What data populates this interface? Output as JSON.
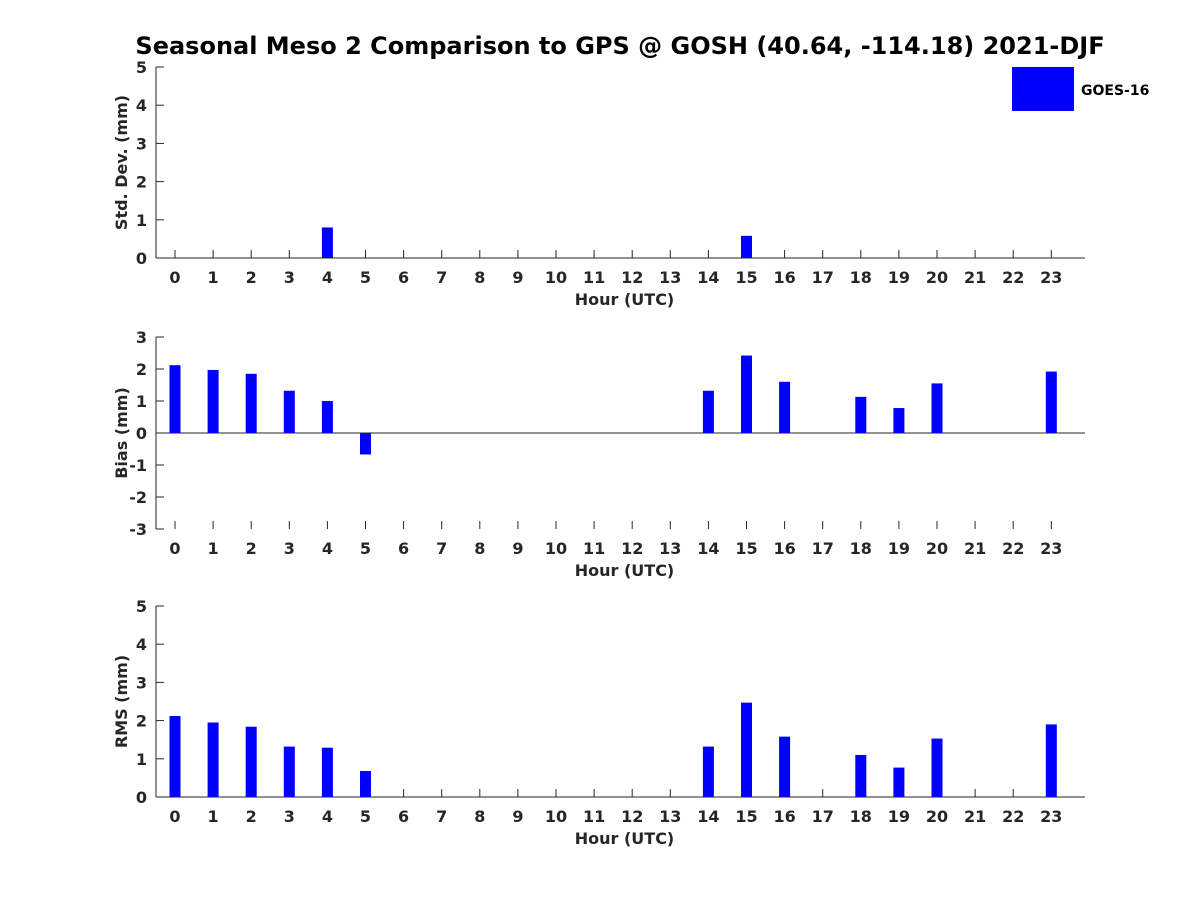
{
  "chart_data": {
    "title": "Seasonal Meso 2 Comparison to GPS @ GOSH (40.64, -114.18) 2021-DJF",
    "type": "bar",
    "legend": {
      "label": "GOES-16",
      "color": "#0000ff",
      "placement": "top-right"
    },
    "categories": [
      "0",
      "1",
      "2",
      "3",
      "4",
      "5",
      "6",
      "7",
      "8",
      "9",
      "10",
      "11",
      "12",
      "13",
      "14",
      "15",
      "16",
      "17",
      "18",
      "19",
      "20",
      "21",
      "22",
      "23"
    ],
    "panels": [
      {
        "id": "std",
        "ylabel": "Std. Dev. (mm)",
        "xlabel": "Hour (UTC)",
        "ylim": [
          0,
          5
        ],
        "yticks": [
          "0",
          "1",
          "2",
          "3",
          "4",
          "5"
        ],
        "values": [
          null,
          null,
          null,
          null,
          0.8,
          null,
          null,
          null,
          null,
          null,
          null,
          null,
          null,
          null,
          null,
          0.58,
          null,
          null,
          null,
          null,
          null,
          null,
          null,
          null
        ]
      },
      {
        "id": "bias",
        "ylabel": "Bias (mm)",
        "xlabel": "Hour (UTC)",
        "ylim": [
          -3,
          3
        ],
        "yticks": [
          "-3",
          "-2",
          "-1",
          "0",
          "1",
          "2",
          "3"
        ],
        "values": [
          2.12,
          1.97,
          1.85,
          1.32,
          1.0,
          -0.67,
          null,
          null,
          null,
          null,
          null,
          null,
          null,
          null,
          1.32,
          2.42,
          1.6,
          null,
          1.13,
          0.78,
          1.55,
          null,
          null,
          1.92
        ]
      },
      {
        "id": "rms",
        "ylabel": "RMS (mm)",
        "xlabel": "Hour (UTC)",
        "ylim": [
          0,
          5
        ],
        "yticks": [
          "0",
          "1",
          "2",
          "3",
          "4",
          "5"
        ],
        "values": [
          2.12,
          1.95,
          1.84,
          1.32,
          1.29,
          0.68,
          null,
          null,
          null,
          null,
          null,
          null,
          null,
          null,
          1.32,
          2.47,
          1.58,
          null,
          1.1,
          0.77,
          1.53,
          null,
          null,
          1.9
        ]
      }
    ]
  }
}
